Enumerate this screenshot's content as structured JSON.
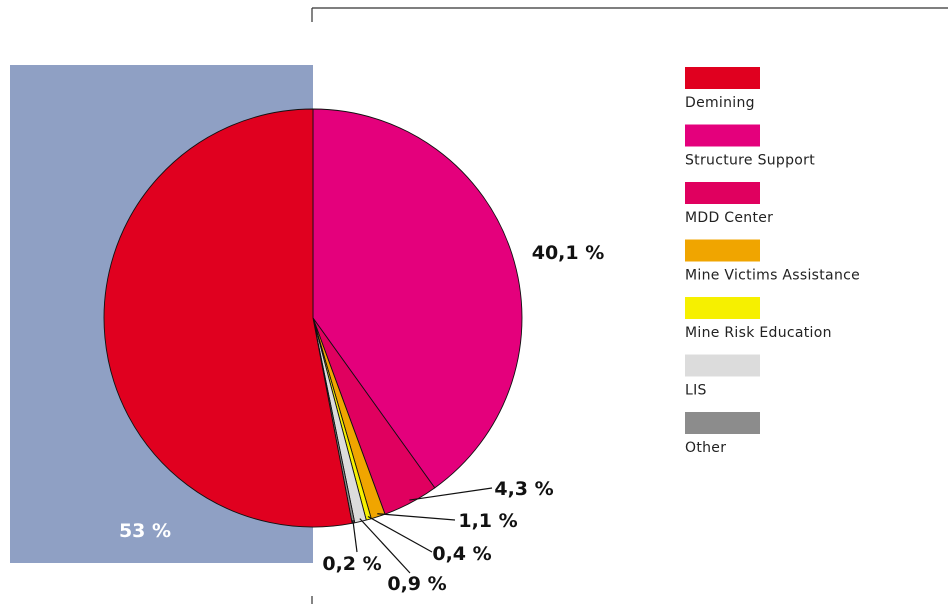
{
  "chart_data": {
    "type": "pie",
    "series": [
      {
        "name": "",
        "values": [
          {
            "label": "Demining",
            "value": 53,
            "value_label": "53 %",
            "color": "#e0001f"
          },
          {
            "label": "Structure Support",
            "value": 40.1,
            "value_label": "40,1 %",
            "color": "#e4007c"
          },
          {
            "label": "MDD Center",
            "value": 4.3,
            "value_label": "4,3 %",
            "color": "#e0005f"
          },
          {
            "label": "Mine Victims Assistance",
            "value": 1.1,
            "value_label": "1,1 %",
            "color": "#f0a500"
          },
          {
            "label": "Mine Risk Education",
            "value": 0.4,
            "value_label": "0,4 %",
            "color": "#f6f000"
          },
          {
            "label": "LIS",
            "value": 0.9,
            "value_label": "0,9 %",
            "color": "#dcdcdc"
          },
          {
            "label": "Other",
            "value": 0.2,
            "value_label": "0,2 %",
            "color": "#8c8c8c"
          }
        ]
      }
    ],
    "legend_position": "right",
    "background_panel_color": "#8fa0c4"
  }
}
